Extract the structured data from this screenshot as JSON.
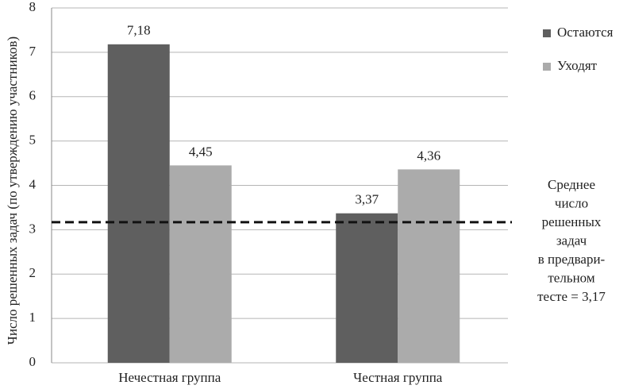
{
  "chart_data": {
    "type": "bar",
    "y_label": "Число решенных задач (по утверждению участников)",
    "categories": [
      "Нечестная группа",
      "Честная группа"
    ],
    "series": [
      {
        "name": "Остаются",
        "color": "#5f5f5f",
        "values": [
          7.18,
          3.37
        ],
        "value_labels": [
          "7,18",
          "3,37"
        ]
      },
      {
        "name": "Уходят",
        "color": "#ababab",
        "values": [
          4.45,
          4.36
        ],
        "value_labels": [
          "4,45",
          "4,36"
        ]
      }
    ],
    "ylim": [
      0,
      8
    ],
    "yticks": [
      0,
      1,
      2,
      3,
      4,
      5,
      6,
      7,
      8
    ],
    "grid": true,
    "legend": "right",
    "reference_line": 3.17,
    "annotation_lines": [
      "Среднее",
      "число",
      "решенных",
      "задач",
      "в предвари-",
      "тельном",
      "тесте = 3,17"
    ]
  }
}
